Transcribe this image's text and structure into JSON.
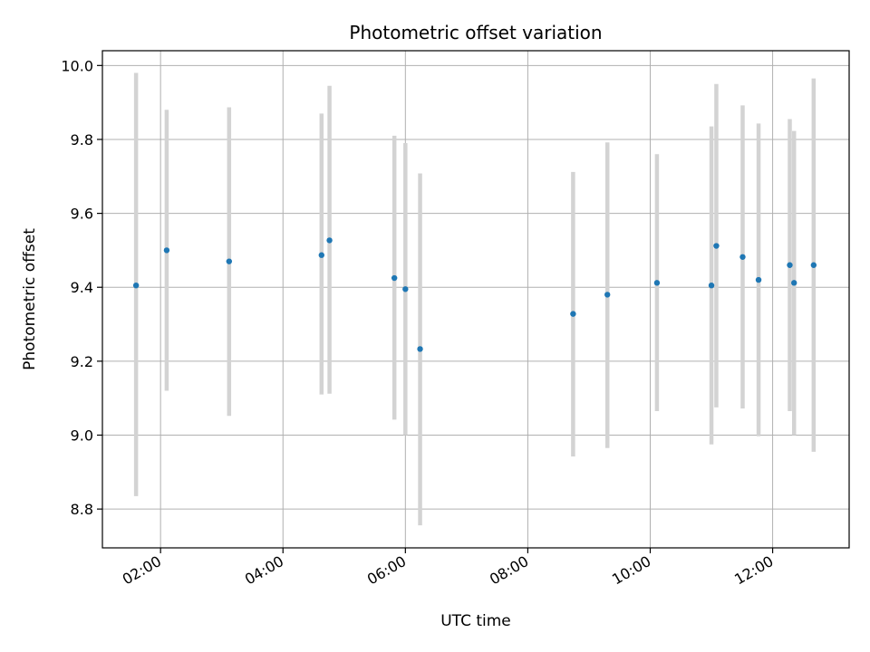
{
  "chart_data": {
    "type": "scatter",
    "title": "Photometric offset variation",
    "xlabel": "UTC time",
    "ylabel": "Photometric offset",
    "x_unit": "hours UTC",
    "xlim": [
      1.05,
      13.25
    ],
    "ylim": [
      8.695,
      10.04
    ],
    "grid": true,
    "x_ticks": [
      {
        "value": 2,
        "label": "02:00"
      },
      {
        "value": 4,
        "label": "04:00"
      },
      {
        "value": 6,
        "label": "06:00"
      },
      {
        "value": 8,
        "label": "08:00"
      },
      {
        "value": 10,
        "label": "10:00"
      },
      {
        "value": 12,
        "label": "12:00"
      }
    ],
    "y_ticks": [
      {
        "value": 8.8,
        "label": "8.8"
      },
      {
        "value": 9.0,
        "label": "9.0"
      },
      {
        "value": 9.2,
        "label": "9.2"
      },
      {
        "value": 9.4,
        "label": "9.4"
      },
      {
        "value": 9.6,
        "label": "9.6"
      },
      {
        "value": 9.8,
        "label": "9.8"
      },
      {
        "value": 10.0,
        "label": "10.0"
      }
    ],
    "point_color": "#1f77b4",
    "errorbar_color": "#d3d3d3",
    "points": [
      {
        "x": 1.6,
        "y": 9.405,
        "ylow": 8.835,
        "yhigh": 9.98
      },
      {
        "x": 2.1,
        "y": 9.5,
        "ylow": 9.12,
        "yhigh": 9.88
      },
      {
        "x": 3.12,
        "y": 9.47,
        "ylow": 9.052,
        "yhigh": 9.887
      },
      {
        "x": 4.63,
        "y": 9.487,
        "ylow": 9.11,
        "yhigh": 9.87
      },
      {
        "x": 4.76,
        "y": 9.527,
        "ylow": 9.112,
        "yhigh": 9.945
      },
      {
        "x": 5.82,
        "y": 9.425,
        "ylow": 9.042,
        "yhigh": 9.81
      },
      {
        "x": 6.0,
        "y": 9.395,
        "ylow": 9.0,
        "yhigh": 9.79
      },
      {
        "x": 6.24,
        "y": 9.233,
        "ylow": 8.756,
        "yhigh": 9.708
      },
      {
        "x": 8.74,
        "y": 9.328,
        "ylow": 8.942,
        "yhigh": 9.712
      },
      {
        "x": 9.3,
        "y": 9.38,
        "ylow": 8.965,
        "yhigh": 9.792
      },
      {
        "x": 10.11,
        "y": 9.412,
        "ylow": 9.065,
        "yhigh": 9.76
      },
      {
        "x": 11.0,
        "y": 9.405,
        "ylow": 8.975,
        "yhigh": 9.835
      },
      {
        "x": 11.08,
        "y": 9.512,
        "ylow": 9.075,
        "yhigh": 9.95
      },
      {
        "x": 11.51,
        "y": 9.482,
        "ylow": 9.072,
        "yhigh": 9.892
      },
      {
        "x": 11.77,
        "y": 9.42,
        "ylow": 8.997,
        "yhigh": 9.843
      },
      {
        "x": 12.28,
        "y": 9.46,
        "ylow": 9.065,
        "yhigh": 9.855
      },
      {
        "x": 12.35,
        "y": 9.412,
        "ylow": 9.0,
        "yhigh": 9.823
      },
      {
        "x": 12.67,
        "y": 9.46,
        "ylow": 8.955,
        "yhigh": 9.965
      }
    ]
  }
}
